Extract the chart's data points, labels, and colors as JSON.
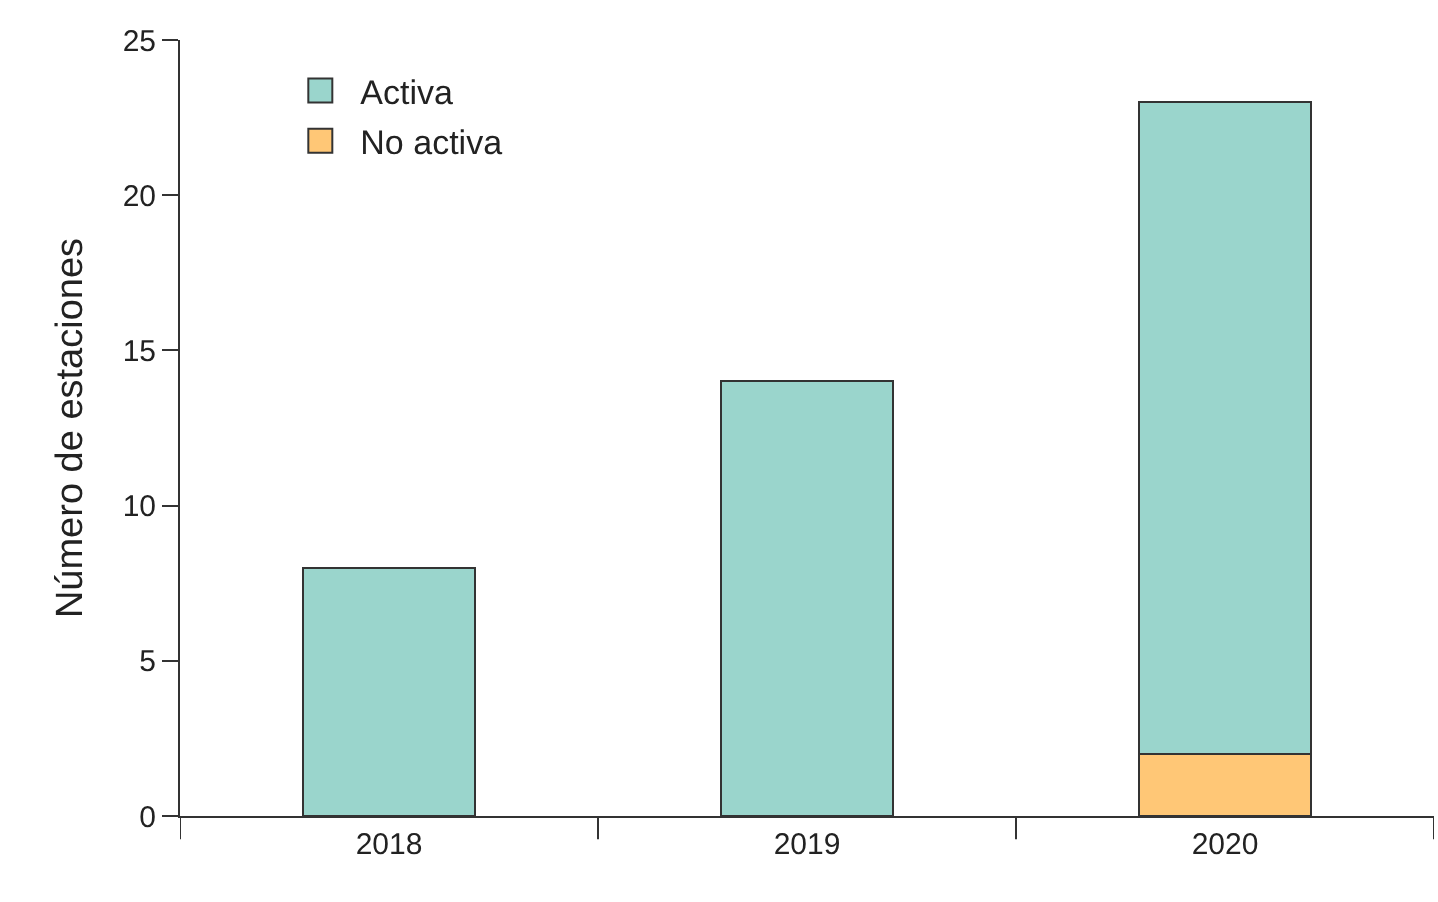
{
  "chart_data": {
    "type": "bar",
    "ylabel": "Número de estaciones",
    "categories": [
      "2018",
      "2019",
      "2020"
    ],
    "stacked": true,
    "series": [
      {
        "name": "No activa",
        "color": "#ffc776",
        "values": [
          0,
          0,
          2
        ]
      },
      {
        "name": "Activa",
        "color": "#9ad5cc",
        "values": [
          8,
          14,
          21
        ]
      }
    ],
    "ylim": [
      0,
      25
    ],
    "yticks": [
      0,
      5,
      10,
      15,
      20,
      25
    ],
    "grid": false,
    "legend": "top left"
  }
}
